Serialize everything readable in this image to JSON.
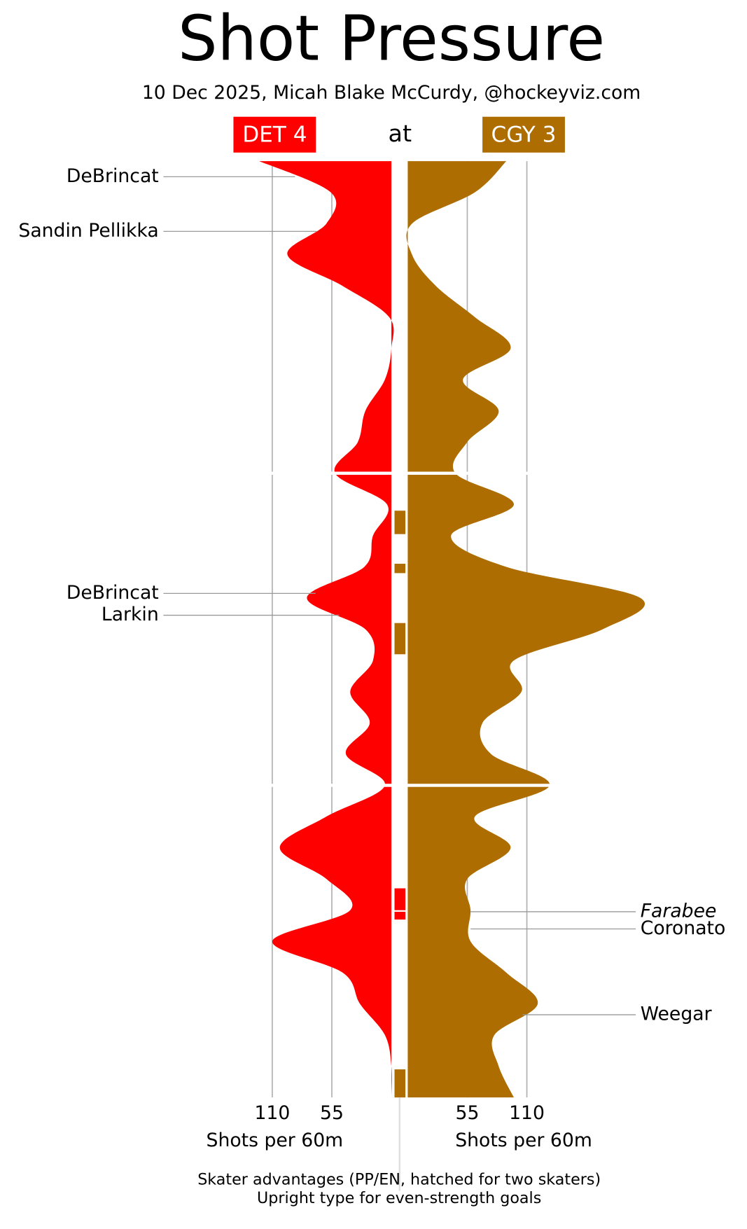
{
  "chart_data": {
    "type": "shot-pressure",
    "title": "Shot Pressure",
    "subtitle": "10 Dec 2025, Micah Blake McCurdy, @hockeyviz.com",
    "connector": "at",
    "xlabel": "Shots per 60m",
    "xticks": [
      55,
      110
    ],
    "xlim": [
      0,
      240
    ],
    "tlim": [
      0,
      60
    ],
    "period_breaks": [
      20,
      40
    ],
    "grid": true,
    "x": [
      0,
      2,
      4,
      6,
      8,
      10,
      12,
      14,
      16,
      18,
      20,
      22,
      24,
      26,
      28,
      30,
      32,
      34,
      36,
      38,
      40,
      42,
      44,
      46,
      48,
      50,
      52,
      54,
      56,
      58,
      60
    ],
    "series": [
      {
        "name": "DET 4",
        "color": "#ff0000",
        "side": "left",
        "values": [
          122,
          56,
          60,
          96,
          45,
          2,
          0,
          6,
          24,
          31,
          52,
          4,
          17,
          25,
          78,
          24,
          17,
          38,
          20,
          42,
          6,
          60,
          103,
          60,
          38,
          110,
          45,
          29,
          6,
          0,
          0
        ]
      },
      {
        "name": "CGY 3",
        "color": "#ad6d00",
        "side": "right",
        "values": [
          91,
          62,
          4,
          4,
          26,
          62,
          95,
          51,
          84,
          55,
          44,
          98,
          40,
          91,
          215,
          180,
          98,
          105,
          69,
          77,
          131,
          62,
          95,
          55,
          58,
          58,
          91,
          120,
          80,
          84,
          98
        ]
      }
    ],
    "goals": [
      {
        "series": 0,
        "player": "DeBrincat",
        "minute": 1
      },
      {
        "series": 0,
        "player": "Sandin Pellikka",
        "minute": 4.5
      },
      {
        "series": 0,
        "player": "DeBrincat",
        "minute": 27.7
      },
      {
        "series": 0,
        "player": "Larkin",
        "minute": 29.1
      },
      {
        "series": 1,
        "player": "Farabee",
        "minute": 48.1,
        "italic": true
      },
      {
        "series": 1,
        "player": "Coronato",
        "minute": 49.2
      },
      {
        "series": 1,
        "player": "Weegar",
        "minute": 54.7
      }
    ],
    "advantages": [
      {
        "series": 1,
        "start": 22.4,
        "end": 23.9
      },
      {
        "series": 1,
        "start": 25.8,
        "end": 26.4
      },
      {
        "series": 1,
        "start": 29.6,
        "end": 31.6
      },
      {
        "series": 0,
        "start": 46.6,
        "end": 48.0
      },
      {
        "series": 0,
        "start": 48.1,
        "end": 48.6
      },
      {
        "series": 1,
        "start": 58.2,
        "end": 60
      }
    ],
    "notes": [
      "Skater advantages (PP/EN, hatched for two skaters)",
      "Upright type for even-strength goals"
    ]
  }
}
